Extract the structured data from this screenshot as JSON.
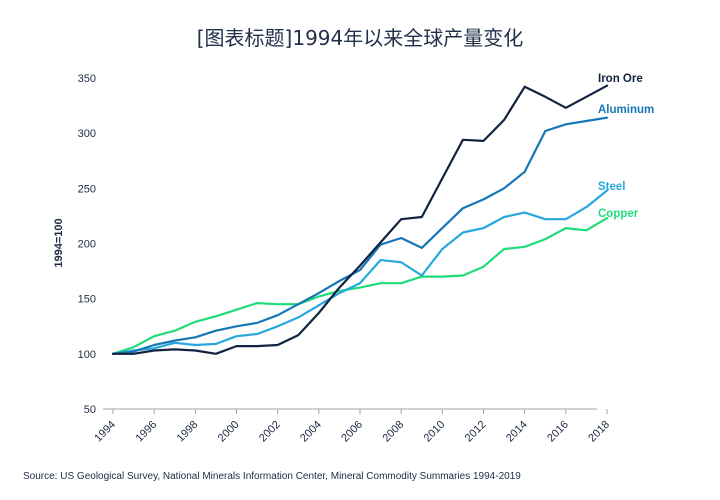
{
  "title": "[图表标题]1994年以来全球产量变化",
  "source": "Source: US Geological Survey, National Minerals Information Center, Mineral Commodity Summaries 1994-2019",
  "chart_data": {
    "type": "line",
    "title": "[图表标题]1994年以来全球产量变化",
    "xlabel": "",
    "ylabel": "1994=100",
    "ylim": [
      50,
      350
    ],
    "yticks": [
      50,
      100,
      150,
      200,
      250,
      300,
      350
    ],
    "xlim": [
      1994,
      2018
    ],
    "xticks": [
      1994,
      1996,
      1998,
      2000,
      2002,
      2004,
      2006,
      2008,
      2010,
      2012,
      2014,
      2016,
      2018
    ],
    "x": [
      1994,
      1995,
      1996,
      1997,
      1998,
      1999,
      2000,
      2001,
      2002,
      2003,
      2004,
      2005,
      2006,
      2007,
      2008,
      2009,
      2010,
      2011,
      2012,
      2013,
      2014,
      2015,
      2016,
      2017,
      2018
    ],
    "grid": false,
    "legend": "labels at line ends",
    "series": [
      {
        "name": "Iron Ore",
        "color": "#12233f",
        "values": [
          100,
          100,
          103,
          104,
          103,
          100,
          107,
          107,
          108,
          117,
          137,
          160,
          180,
          201,
          222,
          224,
          259,
          294,
          293,
          312,
          342,
          333,
          323,
          333,
          343
        ]
      },
      {
        "name": "Aluminum",
        "color": "#1677b7",
        "values": [
          100,
          102,
          108,
          112,
          115,
          121,
          125,
          128,
          135,
          145,
          155,
          166,
          176,
          199,
          205,
          196,
          214,
          232,
          240,
          250,
          265,
          302,
          308,
          311,
          314
        ]
      },
      {
        "name": "Steel",
        "color": "#27a8dd",
        "values": [
          100,
          103,
          105,
          110,
          108,
          109,
          116,
          118,
          125,
          133,
          144,
          155,
          164,
          185,
          183,
          171,
          195,
          210,
          214,
          224,
          228,
          222,
          222,
          233,
          248
        ]
      },
      {
        "name": "Copper",
        "color": "#1fdc7a",
        "values": [
          100,
          106,
          116,
          121,
          129,
          134,
          140,
          146,
          145,
          145,
          152,
          157,
          160,
          164,
          164,
          170,
          170,
          171,
          179,
          195,
          197,
          204,
          214,
          212,
          223
        ]
      }
    ]
  }
}
